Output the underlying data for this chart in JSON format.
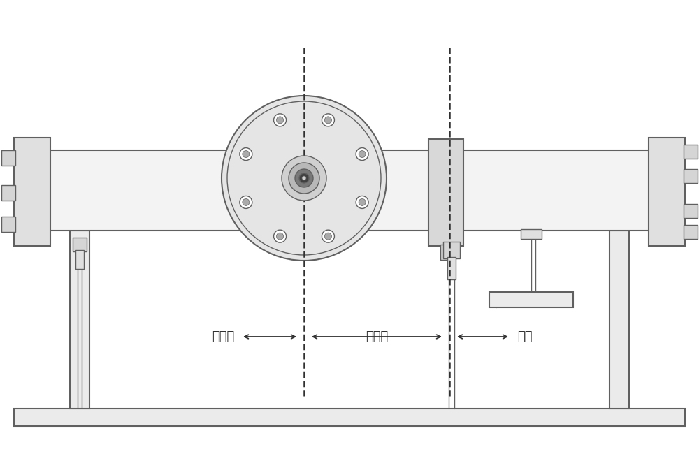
{
  "bg_color": "#ffffff",
  "lc": "#606060",
  "lc_dark": "#404040",
  "fc_tube": "#f5f5f5",
  "fc_flange": "#e8e8e8",
  "fc_gray": "#d8d8d8",
  "fc_darkgray": "#c0c0c0",
  "label_jiazaiduan": "加载段",
  "label_ceshiduan": "测试段",
  "label_bashi": "靶室",
  "font_size": 13,
  "figsize": [
    10.0,
    6.47
  ],
  "dpi": 100
}
